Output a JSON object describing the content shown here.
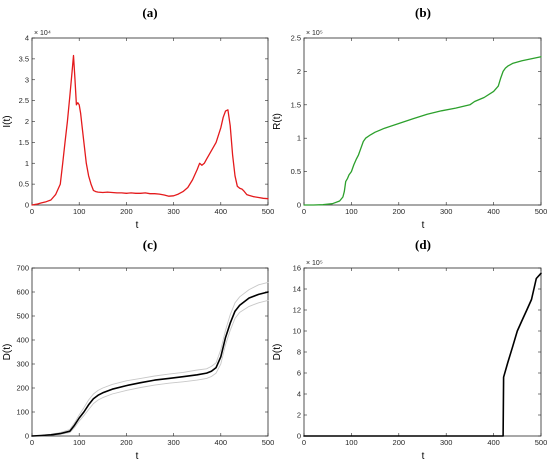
{
  "chart_data": [
    {
      "panel": "(a)",
      "type": "line",
      "xlabel": "t",
      "ylabel": "I(t)",
      "xlim": [
        0,
        500
      ],
      "ylim": [
        0,
        40000
      ],
      "xticks": [
        0,
        100,
        200,
        300,
        400,
        500
      ],
      "yticks": [
        0,
        5000,
        10000,
        15000,
        20000,
        25000,
        30000,
        35000,
        40000
      ],
      "ytick_labels": [
        "0",
        "0.5",
        "1",
        "1.5",
        "2",
        "2.5",
        "3",
        "3.5",
        "4"
      ],
      "y_exponent": "× 10⁴",
      "grid": false,
      "series": [
        {
          "color": "#e41a1c",
          "x": [
            0,
            10,
            20,
            30,
            40,
            50,
            60,
            65,
            70,
            75,
            80,
            85,
            88,
            91,
            94,
            97,
            100,
            103,
            106,
            110,
            115,
            120,
            125,
            130,
            135,
            140,
            150,
            160,
            170,
            180,
            190,
            200,
            210,
            220,
            230,
            240,
            250,
            260,
            270,
            280,
            290,
            300,
            310,
            320,
            330,
            340,
            350,
            355,
            360,
            365,
            370,
            380,
            390,
            400,
            405,
            410,
            415,
            420,
            425,
            430,
            435,
            440,
            445,
            450,
            455,
            460,
            470,
            480,
            490,
            500
          ],
          "y": [
            0,
            200,
            500,
            800,
            1200,
            2500,
            5000,
            10000,
            15000,
            20000,
            26000,
            32000,
            35800,
            30000,
            24000,
            24500,
            24000,
            22000,
            19000,
            15000,
            10000,
            7000,
            5000,
            3500,
            3200,
            3100,
            3000,
            3100,
            3000,
            2900,
            2900,
            2800,
            2900,
            2800,
            2800,
            2900,
            2700,
            2700,
            2600,
            2400,
            2100,
            2200,
            2600,
            3200,
            4200,
            6000,
            8500,
            10000,
            9500,
            10000,
            11000,
            13000,
            15000,
            18500,
            21000,
            22500,
            22800,
            19000,
            12000,
            7000,
            4500,
            4000,
            3800,
            3200,
            2500,
            2300,
            2000,
            1800,
            1600,
            1500
          ]
        }
      ]
    },
    {
      "panel": "(b)",
      "type": "line",
      "xlabel": "t",
      "ylabel": "R(t)",
      "xlim": [
        0,
        500
      ],
      "ylim": [
        0,
        250000
      ],
      "xticks": [
        0,
        100,
        200,
        300,
        400,
        500
      ],
      "yticks": [
        0,
        50000,
        100000,
        150000,
        200000,
        250000
      ],
      "ytick_labels": [
        "0",
        "0.5",
        "1",
        "1.5",
        "2",
        "2.5"
      ],
      "y_exponent": "× 10⁵",
      "grid": false,
      "series": [
        {
          "color": "#2ca02c",
          "x": [
            0,
            20,
            40,
            60,
            75,
            82,
            85,
            88,
            92,
            95,
            100,
            105,
            110,
            115,
            120,
            125,
            130,
            140,
            150,
            170,
            200,
            230,
            260,
            290,
            320,
            350,
            360,
            380,
            400,
            410,
            415,
            420,
            425,
            430,
            440,
            460,
            480,
            500
          ],
          "y": [
            0,
            0,
            500,
            2000,
            6000,
            12000,
            20000,
            35000,
            40000,
            45000,
            50000,
            60000,
            68000,
            75000,
            85000,
            95000,
            100000,
            105000,
            109000,
            115000,
            122000,
            129000,
            136000,
            141000,
            145000,
            150000,
            155000,
            161000,
            170000,
            178000,
            190000,
            200000,
            205000,
            208000,
            212000,
            216000,
            219000,
            222000
          ]
        }
      ]
    },
    {
      "panel": "(c)",
      "type": "line",
      "xlabel": "t",
      "ylabel": "D(t)",
      "xlim": [
        0,
        500
      ],
      "ylim": [
        0,
        700
      ],
      "xticks": [
        0,
        100,
        200,
        300,
        400,
        500
      ],
      "yticks": [
        0,
        100,
        200,
        300,
        400,
        500,
        600,
        700
      ],
      "ytick_labels": [
        "0",
        "100",
        "200",
        "300",
        "400",
        "500",
        "600",
        "700"
      ],
      "y_exponent": "",
      "grid": false,
      "series": [
        {
          "color": "#000000",
          "role": "mean",
          "x": [
            0,
            20,
            40,
            60,
            80,
            90,
            100,
            110,
            120,
            130,
            140,
            150,
            170,
            200,
            230,
            260,
            290,
            320,
            350,
            370,
            380,
            390,
            400,
            410,
            420,
            430,
            440,
            460,
            480,
            500
          ],
          "y": [
            0,
            2,
            5,
            10,
            20,
            45,
            75,
            100,
            130,
            155,
            170,
            180,
            195,
            210,
            222,
            233,
            240,
            247,
            255,
            262,
            270,
            285,
            330,
            410,
            470,
            520,
            545,
            575,
            590,
            600
          ]
        },
        {
          "color": "#c8c8c8",
          "role": "sample-upper",
          "x": [
            0,
            20,
            40,
            60,
            80,
            90,
            100,
            110,
            120,
            130,
            140,
            150,
            170,
            200,
            230,
            260,
            290,
            320,
            350,
            370,
            380,
            390,
            400,
            410,
            420,
            430,
            440,
            460,
            480,
            500
          ],
          "y": [
            0,
            3,
            7,
            14,
            27,
            55,
            88,
            118,
            150,
            175,
            190,
            200,
            215,
            230,
            240,
            250,
            258,
            265,
            275,
            280,
            290,
            305,
            360,
            440,
            505,
            555,
            580,
            610,
            630,
            640
          ]
        },
        {
          "color": "#c8c8c8",
          "role": "sample-lower",
          "x": [
            0,
            20,
            40,
            60,
            80,
            90,
            100,
            110,
            120,
            130,
            140,
            150,
            170,
            200,
            230,
            260,
            290,
            320,
            350,
            370,
            380,
            390,
            400,
            410,
            420,
            430,
            440,
            460,
            480,
            500
          ],
          "y": [
            0,
            1,
            3,
            7,
            14,
            35,
            62,
            85,
            110,
            135,
            150,
            160,
            175,
            190,
            202,
            212,
            220,
            226,
            233,
            240,
            248,
            262,
            300,
            380,
            440,
            490,
            515,
            540,
            555,
            565
          ]
        }
      ]
    },
    {
      "panel": "(d)",
      "type": "line",
      "xlabel": "t",
      "ylabel": "D(t)",
      "xlim": [
        0,
        500
      ],
      "ylim": [
        0,
        1600000
      ],
      "xticks": [
        0,
        100,
        200,
        300,
        400,
        500
      ],
      "yticks": [
        0,
        200000,
        400000,
        600000,
        800000,
        1000000,
        1200000,
        1400000,
        1600000
      ],
      "ytick_labels": [
        "0",
        "2",
        "4",
        "6",
        "8",
        "10",
        "12",
        "14",
        "16"
      ],
      "y_exponent": "× 10⁵",
      "grid": false,
      "series": [
        {
          "color": "#000000",
          "x": [
            0,
            420,
            421,
            430,
            440,
            450,
            460,
            470,
            480,
            490,
            500
          ],
          "y": [
            0,
            0,
            560000,
            700000,
            850000,
            1000000,
            1100000,
            1200000,
            1300000,
            1500000,
            1550000
          ]
        }
      ]
    }
  ]
}
